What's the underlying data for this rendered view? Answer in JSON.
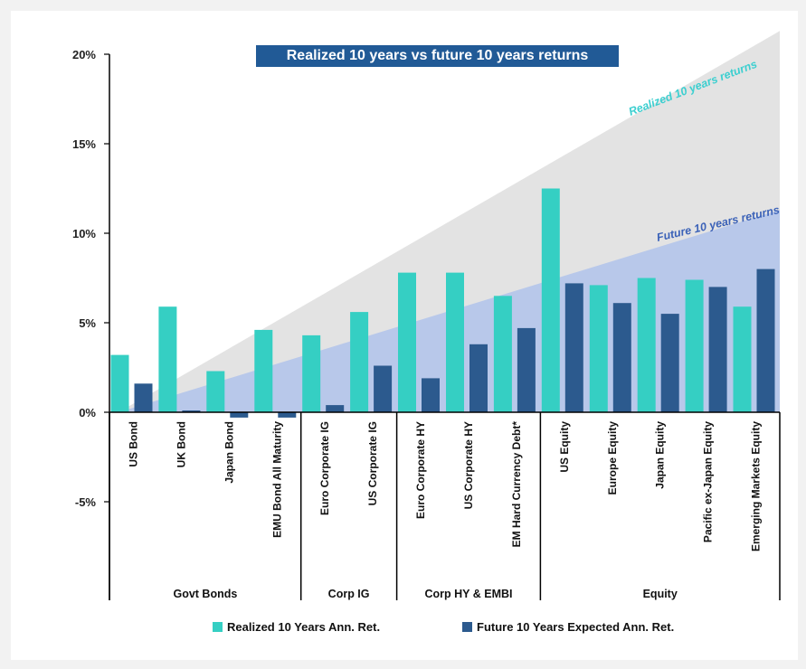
{
  "colors": {
    "realized": "#35cfc3",
    "future": "#2c5a8e",
    "realized_band": "#e3e3e3",
    "future_band": "#b8c8ea",
    "title_bg": "#215a96",
    "realized_label": "#3ccfd0",
    "future_label": "#3b62b8"
  },
  "chart_data": {
    "type": "bar",
    "title": "Realized 10 years vs future 10 years returns",
    "ylim": [
      -10,
      20
    ],
    "yticks": [
      20,
      15,
      10,
      5,
      0,
      -5
    ],
    "ytick_labels": [
      "20%",
      "15%",
      "10%",
      "5%",
      "0%",
      "-5%"
    ],
    "categories": [
      "US Bond",
      "UK Bond",
      "Japan Bond",
      "EMU Bond All Maturity",
      "Euro Corporate IG",
      "US Corporate IG",
      "Euro Corporate HY",
      "US Corporate HY",
      "EM Hard Currency Debt*",
      "US Equity",
      "Europe Equity",
      "Japan Equity",
      "Pacific ex-Japan Equity",
      "Emerging Markets Equity"
    ],
    "groups": [
      {
        "name": "Govt Bonds",
        "count": 4
      },
      {
        "name": "Corp IG",
        "count": 2
      },
      {
        "name": "Corp HY & EMBI",
        "count": 3
      },
      {
        "name": "Equity",
        "count": 5
      }
    ],
    "series": [
      {
        "name": "Realized 10 Years Ann. Ret.",
        "values": [
          3.2,
          5.9,
          2.3,
          4.6,
          4.3,
          5.6,
          7.8,
          7.8,
          6.5,
          12.5,
          7.1,
          7.5,
          7.4,
          5.9
        ]
      },
      {
        "name": "Future 10 Years Expected Ann. Ret.",
        "values": [
          1.6,
          0.1,
          -0.3,
          -0.3,
          0.4,
          2.6,
          1.9,
          3.8,
          4.7,
          7.2,
          6.1,
          5.5,
          7.0,
          8.0
        ]
      }
    ],
    "annotations": [
      "Realized 10 years returns",
      "Future 10 years returns"
    ],
    "bands": {
      "realized_end": 21.3,
      "future_end": 11.3
    }
  }
}
